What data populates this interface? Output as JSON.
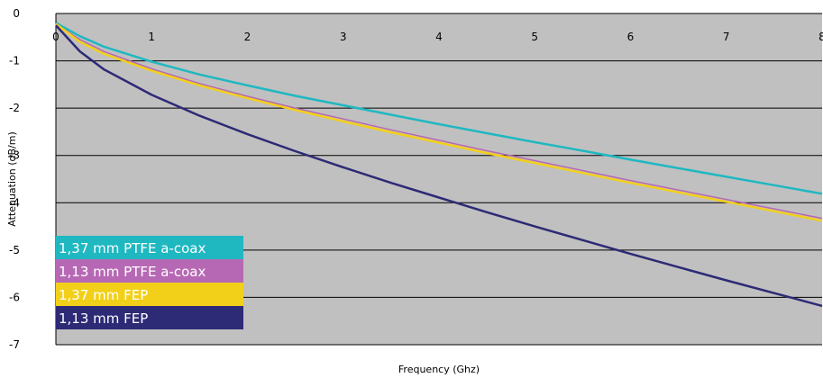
{
  "chart_data": {
    "type": "line",
    "title": "",
    "xlabel": "Frequency (Ghz)",
    "ylabel": "Attenuation (dB/m)",
    "xlim": [
      0,
      8
    ],
    "ylim": [
      -7,
      0
    ],
    "x_ticks": [
      "0",
      "1",
      "2",
      "3",
      "4",
      "5",
      "6",
      "7",
      "8"
    ],
    "y_ticks": [
      "0",
      "-1",
      "-2",
      "-3",
      "-4",
      "-5",
      "-6",
      "-7"
    ],
    "grid": "horizontal",
    "plot_background": "#c0c0c0",
    "legend_position": "bottom-left",
    "x": [
      0,
      0.25,
      0.5,
      1,
      1.5,
      2,
      2.5,
      3,
      3.5,
      4,
      4.5,
      5,
      5.5,
      6,
      6.5,
      7,
      7.5,
      8
    ],
    "series": [
      {
        "name": "1,37 mm PTFE a-coax",
        "color": "#1fb8c1",
        "values": [
          -0.2,
          -0.48,
          -0.7,
          -1.02,
          -1.29,
          -1.52,
          -1.74,
          -1.94,
          -2.14,
          -2.34,
          -2.53,
          -2.72,
          -2.9,
          -3.09,
          -3.27,
          -3.45,
          -3.63,
          -3.81
        ]
      },
      {
        "name": "1,13 mm PTFE a-coax",
        "color": "#b768b4",
        "values": [
          -0.22,
          -0.55,
          -0.8,
          -1.17,
          -1.48,
          -1.75,
          -2.0,
          -2.23,
          -2.46,
          -2.68,
          -2.9,
          -3.11,
          -3.32,
          -3.53,
          -3.73,
          -3.93,
          -4.13,
          -4.33
        ]
      },
      {
        "name": "1,37 mm FEP",
        "color": "#f2d01a",
        "values": [
          -0.22,
          -0.6,
          -0.85,
          -1.21,
          -1.52,
          -1.79,
          -2.04,
          -2.28,
          -2.51,
          -2.73,
          -2.95,
          -3.16,
          -3.37,
          -3.58,
          -3.78,
          -3.98,
          -4.18,
          -4.38
        ]
      },
      {
        "name": "1,13 mm FEP",
        "color": "#2d2a76",
        "values": [
          -0.25,
          -0.8,
          -1.18,
          -1.72,
          -2.16,
          -2.55,
          -2.91,
          -3.25,
          -3.58,
          -3.89,
          -4.2,
          -4.5,
          -4.79,
          -5.08,
          -5.36,
          -5.64,
          -5.91,
          -6.18
        ]
      }
    ]
  }
}
